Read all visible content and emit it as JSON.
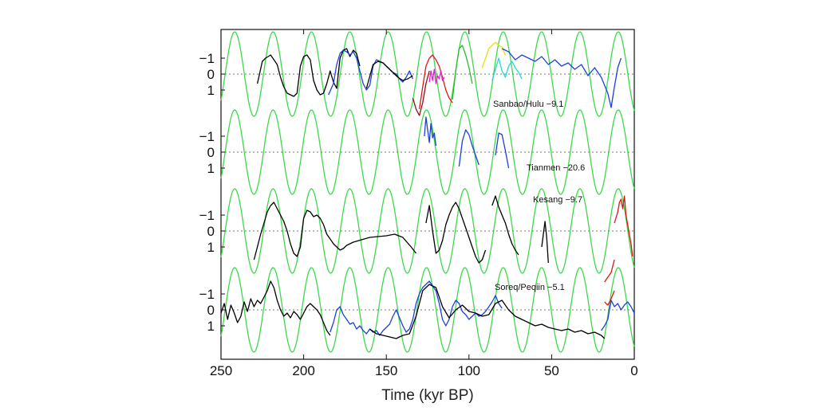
{
  "chart_data": {
    "type": "line",
    "title": "",
    "xlabel": "Time (kyr BP)",
    "ylabel": "",
    "xlim": [
      250,
      0
    ],
    "x_ticks": [
      250,
      200,
      150,
      100,
      50,
      0
    ],
    "x_tick_labels": [
      "250",
      "200",
      "150",
      "100",
      "50",
      "0"
    ],
    "y_tick_labels": [
      "−1",
      "0",
      "1"
    ],
    "grid": false,
    "insolation_color": "#3cd94a",
    "panels": [
      {
        "name": "Sanbao/Hulu",
        "label": "Sanbao/Hulu  −9.1",
        "insolation_phase": 0,
        "series": [
          {
            "name": "black",
            "color": "#000000",
            "x": [
              228,
              225,
              223,
              220,
              218,
              216,
              214,
              212,
              210,
              208,
              206,
              204,
              202,
              200,
              198,
              196,
              194,
              192,
              190,
              188,
              186,
              184,
              182,
              180,
              178,
              176,
              174,
              172,
              170,
              168,
              166
            ],
            "y": [
              0.6,
              -0.8,
              -1.0,
              -1.2,
              -0.9,
              -0.6,
              0.2,
              0.8,
              1.2,
              1.3,
              1.4,
              1.2,
              -0.5,
              -1.1,
              -1.2,
              -0.9,
              0.4,
              1.0,
              1.3,
              1.2,
              0.6,
              -0.2,
              0.5,
              0.9,
              -1.0,
              -1.5,
              -1.6,
              -1.1,
              -1.5,
              -1.3,
              -0.5
            ]
          },
          {
            "name": "blue",
            "color": "#1b3fe0",
            "x": [
              185,
              182,
              180,
              178,
              176,
              174,
              172,
              170,
              168,
              166,
              164,
              162,
              160,
              158,
              156,
              154,
              152,
              150,
              148,
              146,
              144,
              142,
              140,
              138,
              136,
              134
            ],
            "y": [
              1.3,
              0.6,
              -0.6,
              -1.3,
              -1.5,
              -1.4,
              -1.2,
              -1.4,
              -1.0,
              -0.2,
              0.6,
              1.0,
              0.7,
              -0.5,
              -0.9,
              -0.8,
              -0.7,
              -0.5,
              -0.3,
              -0.1,
              0.0,
              0.3,
              0.5,
              0.2,
              -0.2,
              0.3
            ]
          },
          {
            "name": "black-2",
            "color": "#000000",
            "x": [
              162,
              158,
              155,
              152,
              149,
              146,
              143,
              140,
              137,
              134
            ],
            "y": [
              0.9,
              -0.6,
              -0.8,
              -0.7,
              -0.4,
              -0.1,
              0.2,
              0.4,
              0.3,
              0.1
            ]
          },
          {
            "name": "darkred",
            "color": "#8b1010",
            "x": [
              134,
              132,
              130,
              128,
              126,
              124
            ],
            "y": [
              1.5,
              2.2,
              2.6,
              1.8,
              0.6,
              -0.2
            ]
          },
          {
            "name": "red",
            "color": "#e01515",
            "x": [
              130,
              128,
              126,
              124,
              122,
              120,
              118,
              116,
              114,
              112,
              110
            ],
            "y": [
              2.2,
              0.8,
              -0.5,
              -1.0,
              -1.2,
              -0.9,
              -0.5,
              0.2,
              1.0,
              1.5,
              1.8
            ]
          },
          {
            "name": "magenta",
            "color": "#e818d8",
            "x": [
              124,
              123,
              122,
              121,
              120,
              119,
              118,
              117,
              116,
              115
            ],
            "y": [
              0.5,
              -0.2,
              0.4,
              -0.3,
              0.6,
              0.1,
              0.3,
              -0.2,
              0.4,
              0.2
            ]
          },
          {
            "name": "green",
            "color": "#2eb82e",
            "x": [
              110,
              108,
              106,
              104,
              102,
              100,
              98
            ],
            "y": [
              1.6,
              -0.2,
              -1.6,
              -1.8,
              -1.2,
              -0.4,
              0.6
            ]
          },
          {
            "name": "yellow",
            "color": "#e5e010",
            "x": [
              92,
              90,
              88,
              86,
              84,
              82,
              80,
              78
            ],
            "y": [
              -0.4,
              -1.0,
              -1.6,
              -1.8,
              -2.0,
              -1.8,
              -1.7,
              -1.2
            ]
          },
          {
            "name": "cyan",
            "color": "#20d6d6",
            "x": [
              86,
              84,
              82,
              80,
              78,
              76,
              74,
              72,
              70,
              68
            ],
            "y": [
              0.4,
              -0.3,
              -1.0,
              -0.2,
              0.2,
              -0.5,
              -0.8,
              -0.4,
              -0.1,
              0.3
            ]
          },
          {
            "name": "blue-2",
            "color": "#1b3fe0",
            "x": [
              80,
              76,
              72,
              68,
              64,
              60,
              56,
              52,
              48,
              44,
              40,
              36,
              32,
              28,
              24,
              20,
              16,
              14,
              12,
              10,
              8
            ],
            "y": [
              -1.6,
              -1.4,
              -0.9,
              -1.2,
              -1.0,
              -0.8,
              -1.1,
              -0.6,
              -0.9,
              -0.5,
              -0.7,
              -0.3,
              -0.6,
              0.1,
              -0.4,
              0.2,
              1.2,
              2.1,
              0.8,
              -0.4,
              -1.0
            ]
          }
        ]
      },
      {
        "name": "Tianmen",
        "label": "Tianmen −20.6",
        "insolation_phase": 0,
        "series": [
          {
            "name": "blue",
            "color": "#1b3fe0",
            "x": [
              127,
              126,
              125,
              124,
              123,
              122,
              121,
              120
            ],
            "y": [
              -1.0,
              -2.2,
              -1.4,
              -0.6,
              -1.8,
              -0.9,
              -1.2,
              -0.4
            ]
          },
          {
            "name": "blue-2",
            "color": "#1b3fe0",
            "x": [
              106,
              104,
              102,
              100,
              98,
              96,
              94
            ],
            "y": [
              0.9,
              -0.7,
              -1.4,
              -1.1,
              -0.4,
              0.2,
              0.8
            ]
          },
          {
            "name": "blue-3",
            "color": "#1b3fe0",
            "x": [
              84,
              82,
              80,
              78,
              76
            ],
            "y": [
              0.2,
              -1.2,
              -1.1,
              -0.1,
              1.0
            ]
          }
        ]
      },
      {
        "name": "Kesang",
        "label": "Kesang  −9.7",
        "insolation_phase": 0,
        "series": [
          {
            "name": "black",
            "color": "#000000",
            "x": [
              230,
              228,
              226,
              224,
              222,
              220,
              218,
              216,
              214,
              212,
              210,
              208,
              206,
              204,
              202,
              200,
              198,
              196,
              194,
              192,
              190,
              188,
              186,
              184,
              182,
              180,
              178,
              176,
              174,
              172,
              170,
              165,
              160,
              155,
              150,
              145,
              140,
              135,
              132
            ],
            "y": [
              1.8,
              1.0,
              0.2,
              -0.5,
              -1.2,
              -1.6,
              -1.8,
              -1.4,
              -1.0,
              -0.6,
              0.0,
              0.8,
              1.4,
              1.6,
              1.0,
              -0.8,
              -1.3,
              -1.2,
              -0.9,
              -1.0,
              -0.8,
              -0.4,
              0.2,
              0.5,
              0.8,
              1.0,
              1.2,
              1.1,
              0.9,
              0.8,
              0.7,
              0.55,
              0.4,
              0.35,
              0.3,
              0.2,
              0.4,
              1.0,
              1.4
            ]
          },
          {
            "name": "black-2",
            "color": "#000000",
            "x": [
              126,
              124,
              122,
              120,
              118,
              116,
              114,
              112,
              110,
              108,
              106,
              104,
              102,
              100,
              98,
              96,
              94,
              92,
              90
            ],
            "y": [
              -0.5,
              -1.6,
              0.0,
              1.4,
              1.2,
              0.6,
              -0.4,
              -1.0,
              -1.5,
              -1.8,
              -1.4,
              -0.8,
              -0.2,
              0.4,
              1.0,
              1.6,
              2.0,
              1.8,
              1.2
            ]
          },
          {
            "name": "black-3",
            "color": "#000000",
            "x": [
              86,
              84,
              82,
              80,
              78,
              76,
              74,
              72,
              70
            ],
            "y": [
              -1.6,
              -2.2,
              -1.5,
              -1.0,
              -0.5,
              0.2,
              0.8,
              1.2,
              1.5
            ]
          },
          {
            "name": "black-4",
            "color": "#000000",
            "x": [
              56,
              55,
              54,
              53,
              52
            ],
            "y": [
              1.0,
              0.2,
              -0.6,
              0.4,
              2.0
            ]
          },
          {
            "name": "red",
            "color": "#e01515",
            "x": [
              12,
              10,
              9,
              8,
              7,
              6,
              5,
              4,
              3,
              2,
              1
            ],
            "y": [
              -0.5,
              -1.2,
              -1.8,
              -2.0,
              -1.4,
              -2.2,
              -1.0,
              -0.4,
              0.2,
              0.8,
              1.6
            ]
          },
          {
            "name": "red-2",
            "color": "#e01515",
            "x": [
              18,
              16,
              14,
              12
            ],
            "y": [
              3.2,
              2.9,
              2.6,
              1.8
            ]
          }
        ]
      },
      {
        "name": "Soreq/Peqiin",
        "label": "Soreq/Peqiin  −5.1",
        "insolation_phase": 0,
        "series": [
          {
            "name": "black",
            "color": "#000000",
            "x": [
              250,
              248,
              246,
              244,
              242,
              240,
              238,
              236,
              234,
              232,
              230,
              228,
              226,
              224,
              222,
              220,
              218,
              216,
              214,
              212,
              210,
              208,
              206,
              204,
              202,
              200,
              198,
              196,
              194,
              192,
              190,
              188,
              186,
              184
            ],
            "y": [
              0.2,
              -0.4,
              0.6,
              -0.3,
              0.2,
              0.8,
              0.4,
              -0.5,
              0.1,
              -0.7,
              -0.2,
              -0.6,
              -0.4,
              -0.8,
              -1.2,
              -1.8,
              -1.4,
              -0.6,
              0.0,
              0.4,
              0.2,
              0.5,
              0.1,
              0.3,
              0.6,
              0.2,
              -0.2,
              -0.4,
              -0.2,
              0.0,
              0.3,
              0.8,
              1.3,
              1.6
            ]
          },
          {
            "name": "blue",
            "color": "#1b3fe0",
            "x": [
              184,
              182,
              180,
              178,
              176,
              174,
              172,
              170,
              168,
              166,
              164,
              162,
              160,
              158,
              156,
              154,
              152,
              150,
              148,
              146,
              144,
              142,
              140,
              138,
              136,
              134,
              132,
              130,
              128,
              126,
              124,
              122,
              120,
              118,
              116,
              114,
              112,
              110,
              108,
              106,
              104,
              102,
              100,
              98,
              96,
              94,
              92,
              90,
              88,
              86,
              84,
              82,
              80
            ],
            "y": [
              1.4,
              0.8,
              0.0,
              -0.2,
              0.3,
              0.6,
              0.9,
              0.8,
              1.2,
              1.0,
              1.3,
              1.5,
              1.2,
              1.4,
              1.3,
              1.6,
              1.3,
              1.1,
              0.9,
              0.4,
              0.0,
              0.5,
              1.0,
              1.4,
              1.2,
              0.6,
              -0.4,
              -1.0,
              -1.4,
              -1.6,
              -1.8,
              -1.5,
              -1.2,
              -0.4,
              0.6,
              1.0,
              0.6,
              -0.2,
              -0.6,
              -0.4,
              0.1,
              0.3,
              0.6,
              0.4,
              0.2,
              0.4,
              0.3,
              0.1,
              -0.2,
              -0.5,
              -0.9,
              -0.4,
              -0.1
            ]
          },
          {
            "name": "black-2",
            "color": "#000000",
            "x": [
              160,
              156,
              152,
              148,
              144,
              140,
              136,
              132,
              128,
              124,
              120,
              116,
              112,
              108,
              104,
              100,
              96,
              92,
              88,
              84,
              80,
              76,
              72,
              68,
              64,
              60,
              56,
              52,
              48,
              44,
              40,
              36,
              32,
              28,
              24,
              20,
              18
            ],
            "y": [
              1.2,
              1.5,
              1.6,
              1.7,
              1.8,
              1.6,
              1.5,
              0.4,
              -1.2,
              -1.6,
              -1.4,
              -0.2,
              0.5,
              0.0,
              -0.3,
              0.1,
              0.2,
              0.4,
              0.3,
              -0.4,
              -0.6,
              0.0,
              0.4,
              0.6,
              0.8,
              1.0,
              0.9,
              1.1,
              1.2,
              1.3,
              1.2,
              1.4,
              1.3,
              1.5,
              1.4,
              1.6,
              1.8
            ]
          },
          {
            "name": "blue-2",
            "color": "#1b3fe0",
            "x": [
              20,
              18,
              16,
              14,
              12,
              10,
              8,
              6,
              4,
              2,
              0
            ],
            "y": [
              1.3,
              1.0,
              0.6,
              -0.6,
              -0.2,
              -0.4,
              0.0,
              -0.3,
              -0.5,
              -0.2,
              0.2
            ]
          },
          {
            "name": "red",
            "color": "#e01515",
            "x": [
              18,
              16,
              14,
              12
            ],
            "y": [
              -0.5,
              -0.3,
              -0.7,
              -1.2
            ]
          }
        ]
      }
    ]
  }
}
